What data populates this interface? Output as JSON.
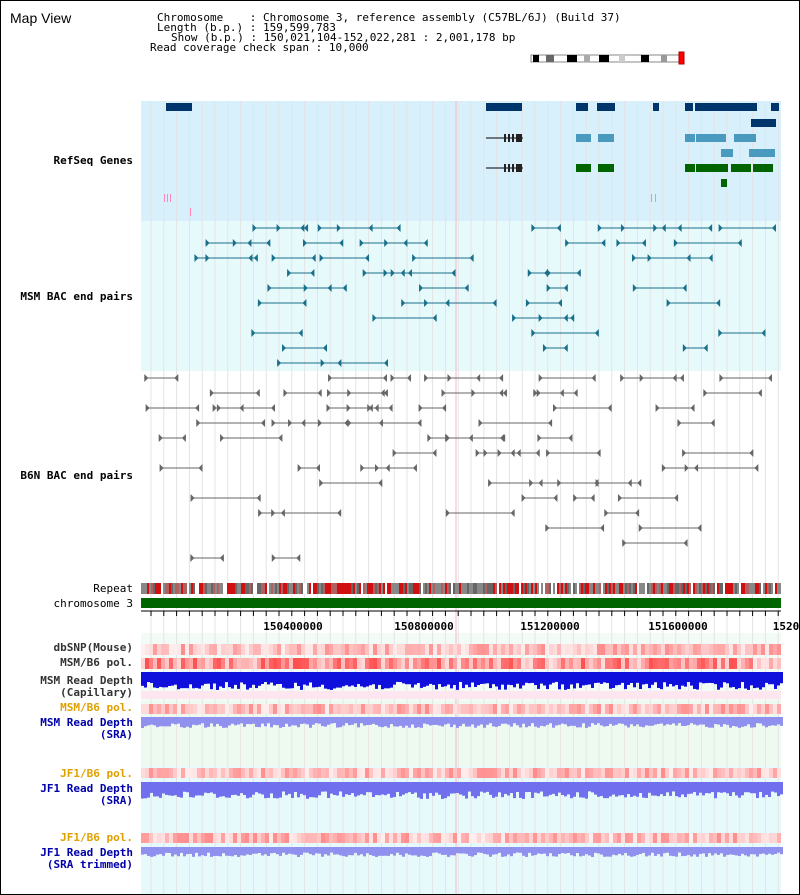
{
  "title": "Map View",
  "info": {
    "chromosome_label": "Chromosome",
    "chromosome_value": "Chromosome 3, reference assembly (C57BL/6J) (Build 37)",
    "length_label": "Length (b.p.)",
    "length_value": "159,599,783",
    "show_label": "Show (b.p.)",
    "show_value": "150,021,104-152,022,281 : 2,001,178 bp",
    "span_label": "Read coverage check span",
    "span_value": "10,000"
  },
  "tracks": {
    "refseq": "RefSeq Genes",
    "msm_bac": "MSM BAC end pairs",
    "b6n_bac": "B6N BAC end pairs",
    "repeat": "Repeat",
    "chromosome": "chromosome 3",
    "dbsnp": "dbSNP(Mouse)",
    "msm_b6_pol": "MSM/B6 pol.",
    "msm_read_depth_cap_1": "MSM Read Depth",
    "msm_read_depth_cap_2": "(Capillary)",
    "msm_b6_pol_2": "MSM/B6 pol.",
    "msm_read_depth_sra_1": "MSM Read Depth",
    "msm_read_depth_sra_2": "(SRA)",
    "jf1_b6_pol": "JF1/B6 pol.",
    "jf1_read_depth_sra_1": "JF1 Read Depth",
    "jf1_read_depth_sra_2": "(SRA)",
    "jf1_b6_pol_2": "JF1/B6 pol.",
    "jf1_read_depth_trim_1": "JF1 Read Depth",
    "jf1_read_depth_trim_2": "(SRA trimmed)"
  },
  "axis": {
    "ticks": [
      "150400000",
      "150800000",
      "151200000",
      "151600000",
      "1520"
    ]
  },
  "colors": {
    "refseq_bg": "#d7f0fb",
    "msm_bg": "#e6fafc",
    "refseq_label": "#0000aa",
    "msm_label": "#006080",
    "b6n_label": "#555555",
    "pol_orange": "#e0a000",
    "depth_blue": "#0000cc",
    "chromosome_green": "#006400"
  },
  "icons": [
    "chromosome-ideogram-icon"
  ]
}
